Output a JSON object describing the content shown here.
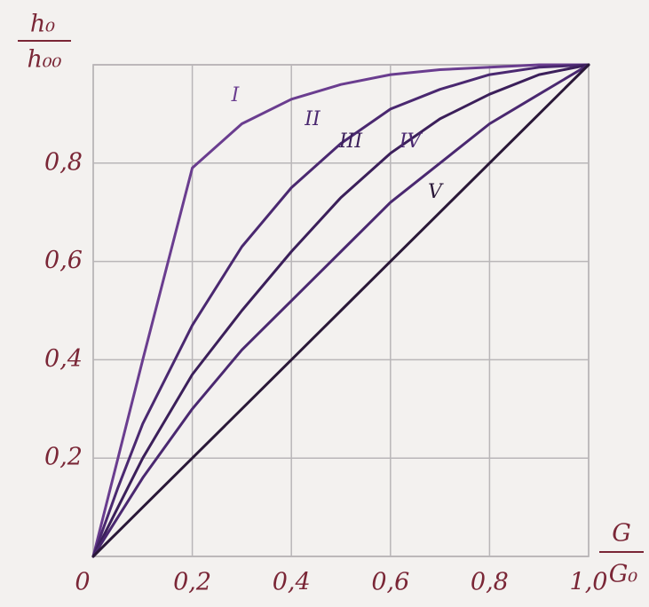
{
  "chart_data": {
    "type": "line",
    "x_label": {
      "numerator": "G",
      "denominator": "G₀"
    },
    "y_label": {
      "numerator": "h₀",
      "denominator": "h₀₀"
    },
    "x": [
      0,
      0.05,
      0.1,
      0.2,
      0.3,
      0.4,
      0.5,
      0.6,
      0.7,
      0.8,
      0.9,
      1.0
    ],
    "series": [
      {
        "name": "I",
        "color": "#6a3d8f",
        "values": [
          0,
          0.2,
          0.4,
          0.79,
          0.88,
          0.93,
          0.96,
          0.98,
          0.99,
          0.995,
          1.0,
          1.0
        ]
      },
      {
        "name": "II",
        "color": "#4a2870",
        "values": [
          0,
          0.14,
          0.27,
          0.47,
          0.63,
          0.75,
          0.84,
          0.91,
          0.95,
          0.98,
          0.995,
          1.0
        ]
      },
      {
        "name": "III",
        "color": "#3b1f5a",
        "values": [
          0,
          0.1,
          0.2,
          0.37,
          0.5,
          0.62,
          0.73,
          0.82,
          0.89,
          0.94,
          0.98,
          1.0
        ]
      },
      {
        "name": "IV",
        "color": "#4a2870",
        "values": [
          0,
          0.08,
          0.16,
          0.3,
          0.42,
          0.52,
          0.62,
          0.72,
          0.8,
          0.88,
          0.94,
          1.0
        ]
      },
      {
        "name": "V",
        "color": "#2a1838",
        "values": [
          0,
          0.05,
          0.1,
          0.2,
          0.3,
          0.4,
          0.5,
          0.6,
          0.7,
          0.8,
          0.9,
          1.0
        ]
      }
    ],
    "xlim": [
      0,
      1.0
    ],
    "ylim": [
      0,
      1.0
    ],
    "xticks": [
      0,
      {
        "value": 0.2,
        "label": "0,2"
      },
      {
        "value": 0.4,
        "label": "0,4"
      },
      {
        "value": 0.6,
        "label": "0,6"
      },
      {
        "value": 0.8,
        "label": "0,8"
      },
      {
        "value": 1.0,
        "label": "1,0"
      }
    ],
    "yticks": [
      {
        "value": 0.2,
        "label": "0,2"
      },
      {
        "value": 0.4,
        "label": "0,4"
      },
      {
        "value": 0.6,
        "label": "0,6"
      },
      {
        "value": 0.8,
        "label": "0,8"
      }
    ],
    "grid": true
  }
}
